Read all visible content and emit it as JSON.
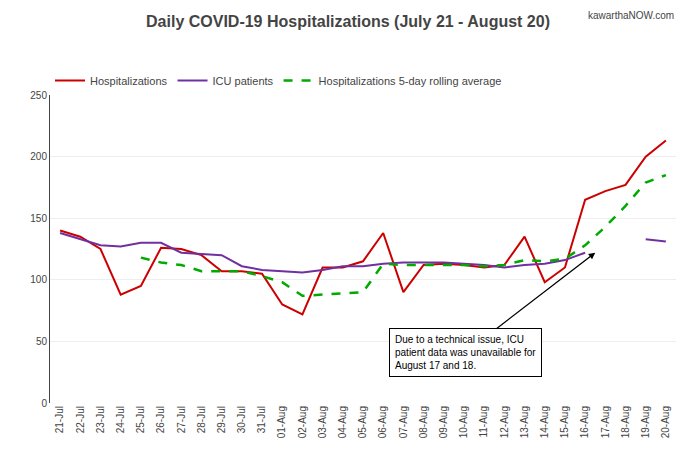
{
  "chart_data": {
    "type": "line",
    "title": "Daily COVID-19 Hospitalizations (July 21 - August 20)",
    "annotations": [
      "Due to a technical issue, ICU\npatient data was unavailable for\nAugust 17 and 18.",
      "kawarthaNOW.com"
    ],
    "categories": [
      "21-Jul",
      "22-Jul",
      "23-Jul",
      "24-Jul",
      "25-Jul",
      "26-Jul",
      "27-Jul",
      "28-Jul",
      "29-Jul",
      "30-Jul",
      "31-Jul",
      "01-Aug",
      "02-Aug",
      "03-Aug",
      "04-Aug",
      "05-Aug",
      "06-Aug",
      "07-Aug",
      "08-Aug",
      "09-Aug",
      "10-Aug",
      "11-Aug",
      "12-Aug",
      "13-Aug",
      "14-Aug",
      "15-Aug",
      "16-Aug",
      "17-Aug",
      "18-Aug",
      "19-Aug",
      "20-Aug"
    ],
    "series": [
      {
        "name": "Hospitalizations",
        "color": "#cc0000",
        "line_style": "solid",
        "values": [
          140,
          135,
          125,
          88,
          95,
          126,
          125,
          120,
          107,
          107,
          105,
          80,
          72,
          110,
          110,
          115,
          138,
          90,
          112,
          113,
          112,
          110,
          112,
          135,
          98,
          110,
          165,
          172,
          177,
          200,
          213
        ]
      },
      {
        "name": "ICU patients",
        "color": "#7030a0",
        "line_style": "solid",
        "values": [
          138,
          133,
          128,
          127,
          130,
          130,
          122,
          121,
          120,
          111,
          108,
          107,
          106,
          108,
          111,
          111,
          113,
          114,
          114,
          114,
          113,
          112,
          110,
          112,
          113,
          116,
          122,
          null,
          null,
          133,
          131
        ]
      },
      {
        "name": "Hospitalizations 5-day rolling average",
        "color": "#00aa00",
        "line_style": "dashed",
        "values": [
          null,
          null,
          null,
          null,
          118,
          114,
          112,
          107,
          107,
          107,
          103,
          98,
          87,
          88,
          89,
          90,
          113,
          112,
          112,
          112,
          112,
          111,
          112,
          116,
          115,
          117,
          128,
          143,
          160,
          179,
          185
        ]
      }
    ],
    "ylim": [
      0,
      250
    ],
    "yticks": [
      0,
      50,
      100,
      150,
      200,
      250
    ],
    "grid": true,
    "legend": "upper left"
  }
}
